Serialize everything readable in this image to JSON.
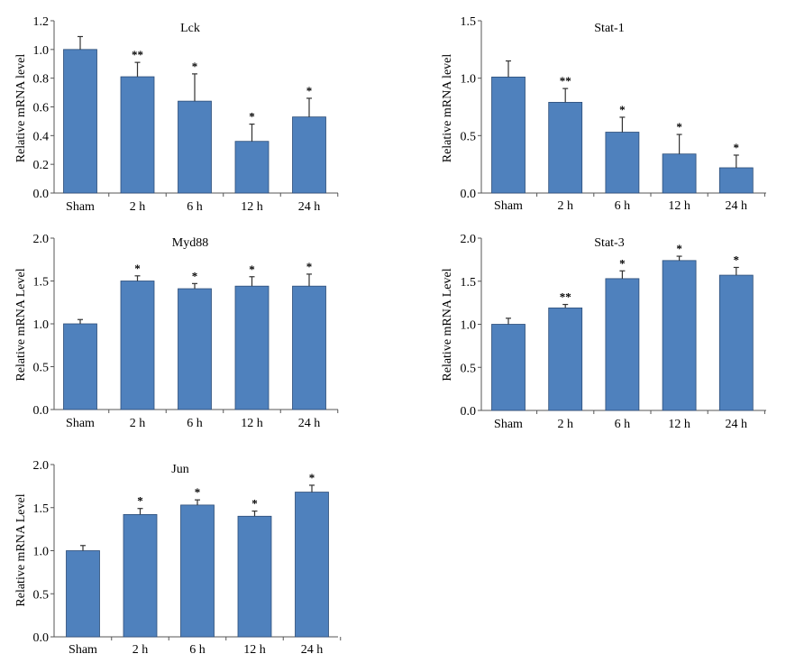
{
  "chart_data": [
    {
      "type": "bar",
      "title": "Lck",
      "ylabel": "Relative mRNA level",
      "categories": [
        "Sham",
        "2 h",
        "6 h",
        "12 h",
        "24 h"
      ],
      "values": [
        1.0,
        0.81,
        0.64,
        0.36,
        0.53
      ],
      "errors": [
        0.09,
        0.1,
        0.19,
        0.12,
        0.13
      ],
      "annotations": [
        "",
        "**",
        "*",
        "*",
        "*"
      ],
      "ylim": [
        0,
        1.2
      ],
      "yticks": [
        "0.0",
        "0.2",
        "0.4",
        "0.6",
        "0.8",
        "1.0",
        "1.2"
      ],
      "bar_color": "#4f81bd"
    },
    {
      "type": "bar",
      "title": "Stat-1",
      "ylabel": "Relative mRNA level",
      "categories": [
        "Sham",
        "2 h",
        "6 h",
        "12 h",
        "24 h"
      ],
      "values": [
        1.01,
        0.79,
        0.53,
        0.34,
        0.22
      ],
      "errors": [
        0.14,
        0.12,
        0.13,
        0.17,
        0.11
      ],
      "annotations": [
        "",
        "**",
        "*",
        "*",
        "*"
      ],
      "ylim": [
        0,
        1.5
      ],
      "yticks": [
        "0.0",
        "0.5",
        "1.0",
        "1.5"
      ],
      "bar_color": "#4f81bd"
    },
    {
      "type": "bar",
      "title": "Myd88",
      "ylabel": "Relative mRNA Level",
      "categories": [
        "Sham",
        "2 h",
        "6 h",
        "12 h",
        "24 h"
      ],
      "values": [
        1.0,
        1.5,
        1.41,
        1.44,
        1.44
      ],
      "errors": [
        0.05,
        0.06,
        0.06,
        0.11,
        0.14
      ],
      "annotations": [
        "",
        "*",
        "*",
        "*",
        "*"
      ],
      "ylim": [
        0,
        2.0
      ],
      "yticks": [
        "0.0",
        "0.5",
        "1.0",
        "1.5",
        "2.0"
      ],
      "bar_color": "#4f81bd"
    },
    {
      "type": "bar",
      "title": "Stat-3",
      "ylabel": "Relative mRNA Level",
      "categories": [
        "Sham",
        "2 h",
        "6 h",
        "12 h",
        "24 h"
      ],
      "values": [
        1.0,
        1.19,
        1.53,
        1.74,
        1.57
      ],
      "errors": [
        0.07,
        0.04,
        0.09,
        0.05,
        0.09
      ],
      "annotations": [
        "",
        "**",
        "*",
        "*",
        "*"
      ],
      "ylim": [
        0,
        2.0
      ],
      "yticks": [
        "0.0",
        "0.5",
        "1.0",
        "1.5",
        "2.0"
      ],
      "bar_color": "#4f81bd"
    },
    {
      "type": "bar",
      "title": "Jun",
      "ylabel": "Relative mRNA Level",
      "categories": [
        "Sham",
        "2 h",
        "6 h",
        "12 h",
        "24 h"
      ],
      "values": [
        1.0,
        1.42,
        1.53,
        1.4,
        1.68
      ],
      "errors": [
        0.06,
        0.07,
        0.06,
        0.06,
        0.08
      ],
      "annotations": [
        "",
        "*",
        "*",
        "*",
        "*"
      ],
      "ylim": [
        0,
        2.0
      ],
      "yticks": [
        "0.0",
        "0.5",
        "1.0",
        "1.5",
        "2.0"
      ],
      "bar_color": "#4f81bd"
    }
  ]
}
